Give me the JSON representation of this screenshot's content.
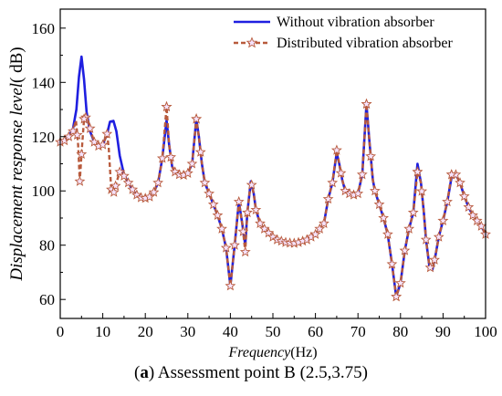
{
  "caption": {
    "letter": "a",
    "text": "Assessment point B (2.5,3.75)"
  },
  "chart_data": {
    "type": "line",
    "xlabel_main": "Frequency",
    "xlabel_unit": "(Hz)",
    "ylabel_main": "Displacement  response level",
    "ylabel_unit": "( dB)",
    "xlim": [
      0,
      100
    ],
    "ylim": [
      53,
      167
    ],
    "xticks": [
      0,
      10,
      20,
      30,
      40,
      50,
      60,
      70,
      80,
      90,
      100
    ],
    "yticks": [
      60,
      80,
      100,
      120,
      140,
      160
    ],
    "legend_position": "top-right",
    "colors": {
      "without": "#1f1fe0",
      "distributed": "#b85a3c",
      "star_fill": "#f5e3ff"
    },
    "series": [
      {
        "name": "Without vibration absorber",
        "style": "solid",
        "points": [
          [
            0,
            118
          ],
          [
            1,
            118.5
          ],
          [
            2,
            120
          ],
          [
            3,
            123
          ],
          [
            3.8,
            130
          ],
          [
            4.4,
            142
          ],
          [
            5,
            149.5
          ],
          [
            5.6,
            141
          ],
          [
            6.2,
            129
          ],
          [
            7,
            122
          ],
          [
            8,
            118
          ],
          [
            9,
            116.5
          ],
          [
            10,
            117
          ],
          [
            11,
            121
          ],
          [
            11.7,
            125.5
          ],
          [
            12.5,
            125.8
          ],
          [
            13.2,
            122
          ],
          [
            14,
            113
          ],
          [
            15,
            106
          ],
          [
            16,
            103
          ],
          [
            17,
            100.5
          ],
          [
            18,
            98.5
          ],
          [
            19,
            97.5
          ],
          [
            20,
            97.3
          ],
          [
            21,
            97.8
          ],
          [
            22,
            99.5
          ],
          [
            23,
            103
          ],
          [
            24,
            112
          ],
          [
            25,
            126
          ],
          [
            25.6,
            117
          ],
          [
            26.3,
            109
          ],
          [
            27,
            107
          ],
          [
            28,
            106
          ],
          [
            29,
            105.8
          ],
          [
            30,
            106.5
          ],
          [
            31,
            110
          ],
          [
            32,
            126.5
          ],
          [
            32.6,
            120
          ],
          [
            33.3,
            110
          ],
          [
            34,
            103
          ],
          [
            35,
            99
          ],
          [
            36,
            95
          ],
          [
            37,
            91
          ],
          [
            38,
            86
          ],
          [
            39,
            79
          ],
          [
            40,
            65
          ],
          [
            41,
            80
          ],
          [
            42,
            96
          ],
          [
            42.8,
            88
          ],
          [
            43.5,
            80
          ],
          [
            44,
            92
          ],
          [
            44.8,
            103.5
          ],
          [
            45.5,
            99
          ],
          [
            46,
            93
          ],
          [
            47,
            88
          ],
          [
            48,
            86
          ],
          [
            49,
            84.5
          ],
          [
            50,
            83
          ],
          [
            51,
            82
          ],
          [
            52,
            81.5
          ],
          [
            53,
            81
          ],
          [
            54,
            80.8
          ],
          [
            55,
            80.7
          ],
          [
            56,
            81
          ],
          [
            57,
            81.5
          ],
          [
            58,
            82
          ],
          [
            59,
            83
          ],
          [
            60,
            84
          ],
          [
            61,
            86
          ],
          [
            62,
            88
          ],
          [
            63,
            97
          ],
          [
            64,
            103
          ],
          [
            65,
            114
          ],
          [
            65.6,
            110
          ],
          [
            66.3,
            104
          ],
          [
            67,
            100
          ],
          [
            68,
            99
          ],
          [
            69,
            98.5
          ],
          [
            70,
            99
          ],
          [
            71,
            106
          ],
          [
            72,
            132
          ],
          [
            72.7,
            118
          ],
          [
            73.5,
            104
          ],
          [
            74,
            100
          ],
          [
            75,
            95
          ],
          [
            76,
            90
          ],
          [
            77,
            84
          ],
          [
            78,
            73
          ],
          [
            79,
            61
          ],
          [
            80,
            66
          ],
          [
            81,
            78
          ],
          [
            82,
            86
          ],
          [
            83,
            92
          ],
          [
            84,
            110
          ],
          [
            84.8,
            103
          ],
          [
            85.5,
            92
          ],
          [
            86,
            82
          ],
          [
            86.8,
            72
          ],
          [
            87.5,
            71
          ],
          [
            88.2,
            76
          ],
          [
            89,
            83
          ],
          [
            90,
            89
          ],
          [
            91,
            96
          ],
          [
            92,
            105
          ],
          [
            93,
            106
          ],
          [
            94,
            103
          ],
          [
            95,
            98
          ],
          [
            96,
            94
          ],
          [
            97,
            91
          ],
          [
            98,
            89
          ],
          [
            99,
            87
          ],
          [
            100,
            84
          ]
        ]
      },
      {
        "name": "Distributed vibration absorber",
        "style": "dashed",
        "points": [
          [
            0,
            118
          ],
          [
            1,
            118.5
          ],
          [
            2,
            120
          ],
          [
            3,
            122
          ],
          [
            3.7,
            126
          ],
          [
            4.2,
            117
          ],
          [
            4.6,
            103.5
          ],
          [
            5.1,
            116
          ],
          [
            5.6,
            126.5
          ],
          [
            6.3,
            127.5
          ],
          [
            7,
            123
          ],
          [
            8,
            118
          ],
          [
            9,
            116.5
          ],
          [
            10,
            117
          ],
          [
            11,
            121
          ],
          [
            11.4,
            116
          ],
          [
            12,
            100.5
          ],
          [
            12.6,
            99.5
          ],
          [
            13.2,
            103
          ],
          [
            14,
            107
          ],
          [
            15,
            105.5
          ],
          [
            16,
            103
          ],
          [
            17,
            100.5
          ],
          [
            18,
            98.5
          ],
          [
            19,
            97.5
          ],
          [
            20,
            97.3
          ],
          [
            21,
            97.8
          ],
          [
            22,
            99.5
          ],
          [
            23,
            103
          ],
          [
            24,
            112
          ],
          [
            25,
            131
          ],
          [
            25.6,
            117
          ],
          [
            26.3,
            109
          ],
          [
            27,
            107
          ],
          [
            28,
            106
          ],
          [
            29,
            105.8
          ],
          [
            30,
            106.5
          ],
          [
            31,
            110
          ],
          [
            32,
            126.5
          ],
          [
            32.6,
            120
          ],
          [
            33.3,
            110
          ],
          [
            34,
            103
          ],
          [
            35,
            99
          ],
          [
            36,
            95
          ],
          [
            37,
            91
          ],
          [
            38,
            86
          ],
          [
            39,
            79
          ],
          [
            40,
            65
          ],
          [
            41,
            80
          ],
          [
            42,
            96
          ],
          [
            42.8,
            88
          ],
          [
            43.5,
            77.5
          ],
          [
            44,
            92
          ],
          [
            44.8,
            103.5
          ],
          [
            45.5,
            99
          ],
          [
            46,
            93
          ],
          [
            47,
            88
          ],
          [
            48,
            86
          ],
          [
            49,
            84.5
          ],
          [
            50,
            83
          ],
          [
            51,
            82
          ],
          [
            52,
            81.5
          ],
          [
            53,
            81
          ],
          [
            54,
            80.8
          ],
          [
            55,
            80.7
          ],
          [
            56,
            81
          ],
          [
            57,
            81.5
          ],
          [
            58,
            82
          ],
          [
            59,
            83
          ],
          [
            60,
            84
          ],
          [
            61,
            86
          ],
          [
            62,
            88
          ],
          [
            63,
            97
          ],
          [
            64,
            103
          ],
          [
            65,
            115
          ],
          [
            65.6,
            110
          ],
          [
            66.3,
            104
          ],
          [
            67,
            100
          ],
          [
            68,
            99
          ],
          [
            69,
            98.5
          ],
          [
            70,
            99
          ],
          [
            71,
            106
          ],
          [
            72,
            132
          ],
          [
            72.7,
            118
          ],
          [
            73.5,
            104
          ],
          [
            74,
            100
          ],
          [
            75,
            95
          ],
          [
            76,
            90
          ],
          [
            77,
            84
          ],
          [
            78,
            73
          ],
          [
            79,
            61
          ],
          [
            80,
            66
          ],
          [
            81,
            78
          ],
          [
            82,
            86
          ],
          [
            83,
            92
          ],
          [
            84,
            107
          ],
          [
            84.8,
            103
          ],
          [
            85.5,
            92
          ],
          [
            86,
            82
          ],
          [
            86.8,
            72
          ],
          [
            87.5,
            71
          ],
          [
            88.2,
            76
          ],
          [
            89,
            83
          ],
          [
            90,
            89
          ],
          [
            91,
            96
          ],
          [
            92,
            106
          ],
          [
            93,
            106
          ],
          [
            94,
            103
          ],
          [
            95,
            98
          ],
          [
            96,
            94
          ],
          [
            97,
            91
          ],
          [
            98,
            89
          ],
          [
            99,
            87
          ],
          [
            100,
            84
          ]
        ]
      }
    ]
  }
}
